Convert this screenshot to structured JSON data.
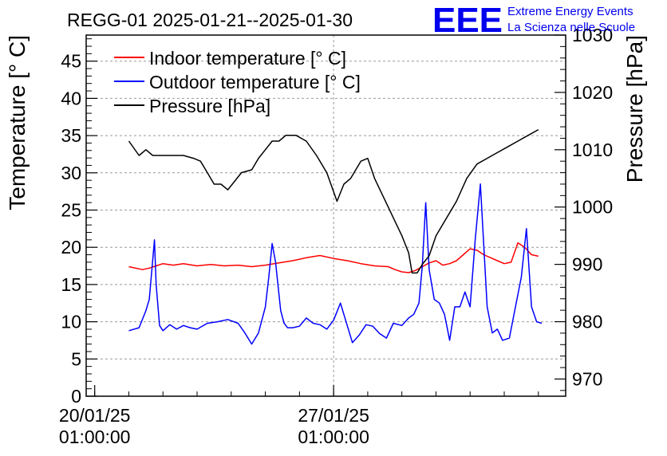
{
  "chart_data": {
    "type": "line",
    "title": "REGG-01 2025-01-21--2025-01-30",
    "ylabel_left": "Temperature [° C]",
    "ylabel_right": "Pressure [hPa]",
    "ylim_left": [
      0,
      48.5
    ],
    "ylim_right": [
      967,
      1030
    ],
    "left_ticks": [
      "0",
      "5",
      "10",
      "15",
      "20",
      "25",
      "30",
      "35",
      "40",
      "45"
    ],
    "right_ticks": [
      "970",
      "980",
      "990",
      "1000",
      "1010",
      "1020",
      "1030"
    ],
    "xlim_days": [
      -0.25,
      13.8
    ],
    "x_ticks": [
      {
        "day": 0,
        "date": "20/01/25",
        "time": "01:00:00"
      },
      {
        "day": 7,
        "date": "27/01/25",
        "time": "01:00:00"
      }
    ],
    "grid": true,
    "legend_position": "top-left",
    "colors": {
      "indoor": "#ff0000",
      "outdoor": "#0000ff",
      "pressure": "#000000",
      "grid": "#999999"
    },
    "series": [
      {
        "name": "Indoor temperature [° C]",
        "axis": "left",
        "color": "#ff0000",
        "x": [
          1.0,
          1.4,
          1.6,
          1.8,
          2.0,
          2.3,
          2.6,
          3.0,
          3.4,
          3.8,
          4.2,
          4.6,
          5.0,
          5.4,
          5.8,
          6.2,
          6.6,
          7.0,
          7.4,
          7.8,
          8.2,
          8.6,
          8.8,
          9.0,
          9.2,
          9.4,
          9.6,
          9.8,
          10.0,
          10.2,
          10.4,
          10.6,
          10.8,
          11.0,
          11.2,
          11.4,
          11.6,
          11.8,
          12.0,
          12.2,
          12.4,
          12.6,
          12.8,
          13.0
        ],
        "y": [
          17.4,
          17.0,
          17.2,
          17.5,
          17.8,
          17.6,
          17.8,
          17.5,
          17.7,
          17.5,
          17.6,
          17.4,
          17.6,
          17.9,
          18.2,
          18.6,
          18.9,
          18.5,
          18.2,
          17.8,
          17.5,
          17.4,
          17.0,
          16.7,
          16.6,
          16.9,
          17.4,
          17.9,
          18.2,
          17.6,
          17.8,
          18.2,
          19.0,
          19.8,
          19.6,
          19.0,
          18.6,
          18.2,
          17.8,
          18.0,
          20.6,
          20.0,
          19.0,
          18.8
        ]
      },
      {
        "name": "Outdoor temperature [° C]",
        "axis": "left",
        "color": "#0000ff",
        "x": [
          1.0,
          1.3,
          1.5,
          1.6,
          1.75,
          1.8,
          1.9,
          2.0,
          2.2,
          2.4,
          2.6,
          2.8,
          3.0,
          3.3,
          3.6,
          3.9,
          4.2,
          4.4,
          4.6,
          4.8,
          5.0,
          5.1,
          5.2,
          5.3,
          5.45,
          5.55,
          5.65,
          5.8,
          6.0,
          6.2,
          6.4,
          6.6,
          6.8,
          7.0,
          7.2,
          7.4,
          7.55,
          7.75,
          7.95,
          8.15,
          8.35,
          8.55,
          8.75,
          9.0,
          9.2,
          9.35,
          9.5,
          9.6,
          9.7,
          9.8,
          9.95,
          10.1,
          10.25,
          10.4,
          10.55,
          10.7,
          10.85,
          11.0,
          11.15,
          11.3,
          11.5,
          11.65,
          11.8,
          11.95,
          12.15,
          12.35,
          12.5,
          12.65,
          12.8,
          12.95,
          13.1
        ],
        "y": [
          8.8,
          9.2,
          11.5,
          13.0,
          21.0,
          15.0,
          9.5,
          8.8,
          9.6,
          9.0,
          9.5,
          9.2,
          9.0,
          9.8,
          10.0,
          10.3,
          9.8,
          8.5,
          7.0,
          8.5,
          12.0,
          16.0,
          20.5,
          18.0,
          11.5,
          9.8,
          9.2,
          9.2,
          9.4,
          10.5,
          9.8,
          9.6,
          9.0,
          10.2,
          12.5,
          9.5,
          7.2,
          8.2,
          9.6,
          9.4,
          8.4,
          7.8,
          9.8,
          9.5,
          10.5,
          11.0,
          12.5,
          17.5,
          26.0,
          17.0,
          13.0,
          12.5,
          11.0,
          7.5,
          12.0,
          12.0,
          14.0,
          12.0,
          21.0,
          28.5,
          12.0,
          8.5,
          9.0,
          7.5,
          7.8,
          12.5,
          16.0,
          22.5,
          12.0,
          10.0,
          9.8
        ]
      },
      {
        "name": "Pressure [hPa]",
        "axis": "right",
        "color": "#000000",
        "x": [
          1.0,
          1.3,
          1.5,
          1.7,
          1.9,
          2.2,
          2.6,
          2.9,
          3.1,
          3.3,
          3.5,
          3.7,
          3.9,
          4.1,
          4.3,
          4.6,
          4.8,
          5.0,
          5.2,
          5.4,
          5.6,
          5.9,
          6.2,
          6.5,
          6.8,
          7.1,
          7.3,
          7.5,
          7.8,
          8.0,
          8.2,
          8.4,
          8.6,
          8.8,
          9.0,
          9.2,
          9.3,
          9.45,
          9.6,
          9.8,
          10.0,
          10.3,
          10.6,
          10.9,
          11.2,
          11.5,
          11.8,
          12.1,
          12.4,
          12.7,
          13.0
        ],
        "y": [
          1011.5,
          1009.0,
          1010.0,
          1009.0,
          1009.0,
          1009.0,
          1009.0,
          1008.5,
          1008.0,
          1006.0,
          1004.0,
          1004.0,
          1003.0,
          1004.5,
          1006.0,
          1006.5,
          1008.5,
          1010.0,
          1011.5,
          1011.5,
          1012.5,
          1012.5,
          1011.5,
          1009.0,
          1006.0,
          1001.0,
          1004.0,
          1005.0,
          1008.0,
          1008.5,
          1005.0,
          1002.5,
          1000.0,
          997.5,
          995.0,
          992.0,
          988.5,
          988.5,
          990.0,
          991.5,
          995.0,
          998.0,
          1001.0,
          1005.0,
          1007.5,
          1008.5,
          1009.5,
          1010.5,
          1011.5,
          1012.5,
          1013.5
        ]
      }
    ]
  },
  "logo": {
    "mark": "EEE",
    "line1": "Extreme Energy Events",
    "line2": "La Scienza nelle Scuole",
    "color": "#0000ee"
  }
}
